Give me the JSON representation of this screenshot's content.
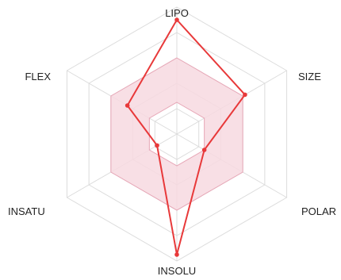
{
  "chart_data": {
    "type": "radar",
    "axes": [
      "LIPO",
      "SIZE",
      "POLAR",
      "INSOLU",
      "INSATU",
      "FLEX"
    ],
    "rings": [
      0.2,
      0.4,
      0.6,
      0.8,
      1.0
    ],
    "grid": true,
    "optimal_range": {
      "min": [
        0.25,
        0.25,
        0.25,
        0.25,
        0.25,
        0.25
      ],
      "max": [
        0.6,
        0.6,
        0.6,
        0.6,
        0.6,
        0.6
      ]
    },
    "series": [
      {
        "values": [
          0.9,
          0.62,
          0.25,
          0.95,
          0.18,
          0.45
        ]
      }
    ],
    "colors": {
      "series_line": "#e8393a",
      "optimal_fill": "#f7d9e1",
      "optimal_stroke": "#e7a6b6",
      "grid": "#dcdcdc",
      "label": "#222222"
    }
  }
}
